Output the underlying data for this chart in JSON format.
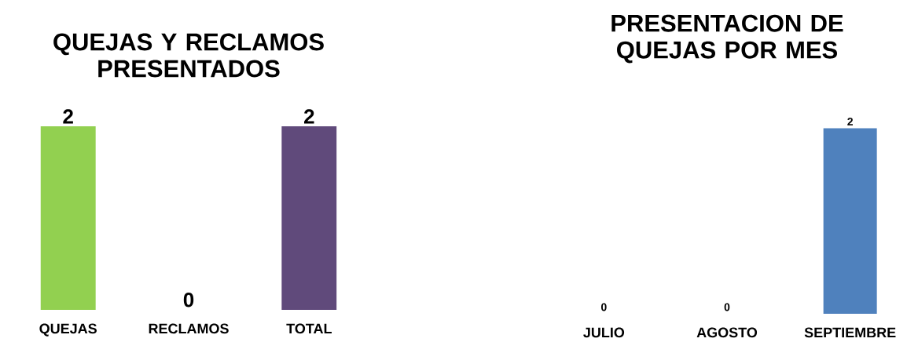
{
  "chart_data": [
    {
      "type": "bar",
      "title": "QUEJAS Y RECLAMOS PRESENTADOS",
      "categories": [
        "QUEJAS",
        "RECLAMOS",
        "TOTAL"
      ],
      "values": [
        2,
        0,
        2
      ],
      "colors": [
        "#92d050",
        "#c89600",
        "#604a7b"
      ],
      "data_labels": true
    },
    {
      "type": "bar",
      "title": "PRESENTACION DE QUEJAS POR MES",
      "categories": [
        "JULIO",
        "AGOSTO",
        "SEPTIEMBRE"
      ],
      "values": [
        0,
        0,
        2
      ],
      "color": "#4f81bd",
      "data_labels": true
    }
  ]
}
